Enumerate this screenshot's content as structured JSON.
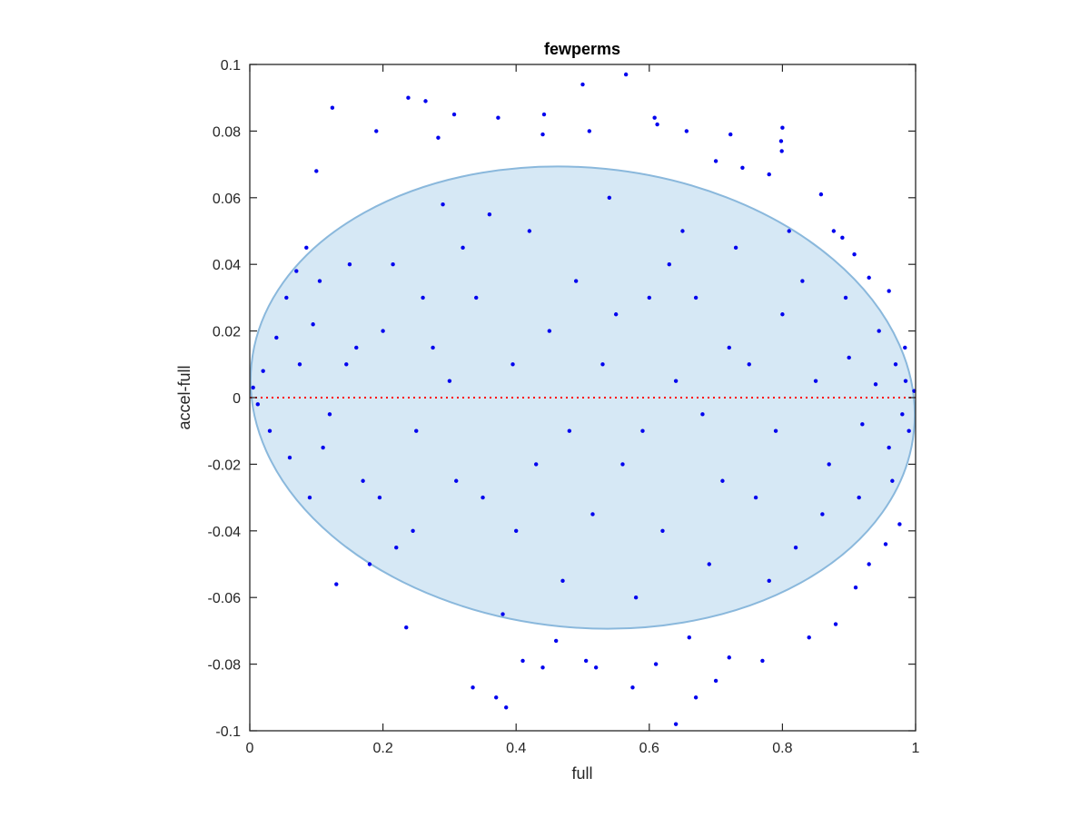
{
  "chart_data": {
    "type": "scatter",
    "title": "fewperms",
    "xlabel": "full",
    "ylabel": "accel-full",
    "xlim": [
      0,
      1
    ],
    "ylim": [
      -0.1,
      0.1
    ],
    "xticks": [
      0,
      0.2,
      0.4,
      0.6,
      0.8,
      1
    ],
    "xtick_labels": [
      "0",
      "0.2",
      "0.4",
      "0.6",
      "0.8",
      "1"
    ],
    "yticks": [
      -0.1,
      -0.08,
      -0.06,
      -0.04,
      -0.02,
      0,
      0.02,
      0.04,
      0.06,
      0.08,
      0.1
    ],
    "ytick_labels": [
      "-0.1",
      "-0.08",
      "-0.06",
      "-0.04",
      "-0.02",
      "0",
      "0.02",
      "0.04",
      "0.06",
      "0.08",
      "0.1"
    ],
    "grid": false,
    "point_color": "#0000ee",
    "reference_line": {
      "y": 0,
      "style": "dotted",
      "color": "#ff0000"
    },
    "ellipse": {
      "center": [
        0.5,
        0
      ],
      "semi_axis_x": 0.5,
      "semi_axis_y": 0.069,
      "rotation_tilt": -0.02,
      "fill": "#d6e8f5",
      "stroke": "#8ab8dc"
    },
    "points": [
      [
        0.124,
        0.087
      ],
      [
        0.238,
        0.09
      ],
      [
        0.264,
        0.089
      ],
      [
        0.307,
        0.085
      ],
      [
        0.373,
        0.084
      ],
      [
        0.442,
        0.085
      ],
      [
        0.5,
        0.094
      ],
      [
        0.565,
        0.097
      ],
      [
        0.608,
        0.084
      ],
      [
        0.8,
        0.081
      ],
      [
        0.19,
        0.08
      ],
      [
        0.51,
        0.08
      ],
      [
        0.44,
        0.079
      ],
      [
        0.283,
        0.078
      ],
      [
        0.656,
        0.08
      ],
      [
        0.612,
        0.082
      ],
      [
        0.799,
        0.074
      ],
      [
        0.722,
        0.079
      ],
      [
        0.798,
        0.077
      ],
      [
        0.1,
        0.068
      ],
      [
        0.7,
        0.071
      ],
      [
        0.74,
        0.069
      ],
      [
        0.78,
        0.067
      ],
      [
        0.858,
        0.061
      ],
      [
        0.877,
        0.05
      ],
      [
        0.89,
        0.048
      ],
      [
        0.908,
        0.043
      ],
      [
        0.93,
        0.036
      ],
      [
        0.96,
        0.032
      ],
      [
        0.984,
        0.015
      ],
      [
        0.005,
        0.003
      ],
      [
        0.012,
        -0.002
      ],
      [
        0.02,
        0.008
      ],
      [
        0.03,
        -0.01
      ],
      [
        0.04,
        0.018
      ],
      [
        0.055,
        0.03
      ],
      [
        0.07,
        0.038
      ],
      [
        0.085,
        0.045
      ],
      [
        0.095,
        0.022
      ],
      [
        0.11,
        -0.015
      ],
      [
        0.13,
        -0.056
      ],
      [
        0.145,
        0.01
      ],
      [
        0.17,
        -0.025
      ],
      [
        0.18,
        -0.05
      ],
      [
        0.22,
        -0.045
      ],
      [
        0.235,
        -0.069
      ],
      [
        0.26,
        0.03
      ],
      [
        0.29,
        0.058
      ],
      [
        0.32,
        0.045
      ],
      [
        0.335,
        -0.087
      ],
      [
        0.35,
        -0.03
      ],
      [
        0.37,
        -0.09
      ],
      [
        0.385,
        -0.093
      ],
      [
        0.38,
        -0.065
      ],
      [
        0.41,
        -0.079
      ],
      [
        0.44,
        -0.081
      ],
      [
        0.46,
        -0.073
      ],
      [
        0.505,
        -0.079
      ],
      [
        0.52,
        -0.081
      ],
      [
        0.575,
        -0.087
      ],
      [
        0.61,
        -0.08
      ],
      [
        0.64,
        -0.098
      ],
      [
        0.66,
        -0.072
      ],
      [
        0.67,
        -0.09
      ],
      [
        0.7,
        -0.085
      ],
      [
        0.72,
        -0.078
      ],
      [
        0.77,
        -0.079
      ],
      [
        0.84,
        -0.072
      ],
      [
        0.88,
        -0.068
      ],
      [
        0.91,
        -0.057
      ],
      [
        0.93,
        -0.05
      ],
      [
        0.955,
        -0.044
      ],
      [
        0.976,
        -0.038
      ],
      [
        0.99,
        -0.01
      ],
      [
        0.998,
        0.002
      ],
      [
        0.45,
        0.02
      ],
      [
        0.48,
        -0.01
      ],
      [
        0.53,
        0.01
      ],
      [
        0.56,
        -0.02
      ],
      [
        0.6,
        0.03
      ],
      [
        0.62,
        -0.04
      ],
      [
        0.65,
        0.05
      ],
      [
        0.68,
        -0.005
      ],
      [
        0.72,
        0.015
      ],
      [
        0.76,
        -0.03
      ],
      [
        0.8,
        0.025
      ],
      [
        0.82,
        -0.045
      ],
      [
        0.85,
        0.005
      ],
      [
        0.87,
        -0.02
      ],
      [
        0.9,
        0.012
      ],
      [
        0.92,
        -0.008
      ],
      [
        0.94,
        0.004
      ],
      [
        0.96,
        -0.015
      ],
      [
        0.97,
        0.01
      ],
      [
        0.98,
        -0.005
      ],
      [
        0.15,
        0.04
      ],
      [
        0.2,
        0.02
      ],
      [
        0.25,
        -0.01
      ],
      [
        0.3,
        0.005
      ],
      [
        0.34,
        0.03
      ],
      [
        0.4,
        -0.04
      ],
      [
        0.42,
        0.05
      ],
      [
        0.47,
        -0.055
      ],
      [
        0.54,
        0.06
      ],
      [
        0.58,
        -0.06
      ],
      [
        0.63,
        0.04
      ],
      [
        0.69,
        -0.05
      ],
      [
        0.73,
        0.045
      ],
      [
        0.78,
        -0.055
      ],
      [
        0.83,
        0.035
      ],
      [
        0.06,
        -0.018
      ],
      [
        0.075,
        0.01
      ],
      [
        0.09,
        -0.03
      ],
      [
        0.105,
        0.035
      ],
      [
        0.12,
        -0.005
      ],
      [
        0.16,
        0.015
      ],
      [
        0.195,
        -0.03
      ],
      [
        0.215,
        0.04
      ],
      [
        0.245,
        -0.04
      ],
      [
        0.275,
        0.015
      ],
      [
        0.31,
        -0.025
      ],
      [
        0.36,
        0.055
      ],
      [
        0.395,
        0.01
      ],
      [
        0.43,
        -0.02
      ],
      [
        0.49,
        0.035
      ],
      [
        0.515,
        -0.035
      ],
      [
        0.55,
        0.025
      ],
      [
        0.59,
        -0.01
      ],
      [
        0.64,
        0.005
      ],
      [
        0.67,
        0.03
      ],
      [
        0.71,
        -0.025
      ],
      [
        0.75,
        0.01
      ],
      [
        0.79,
        -0.01
      ],
      [
        0.81,
        0.05
      ],
      [
        0.86,
        -0.035
      ],
      [
        0.895,
        0.03
      ],
      [
        0.915,
        -0.03
      ],
      [
        0.945,
        0.02
      ],
      [
        0.965,
        -0.025
      ],
      [
        0.985,
        0.005
      ]
    ]
  }
}
